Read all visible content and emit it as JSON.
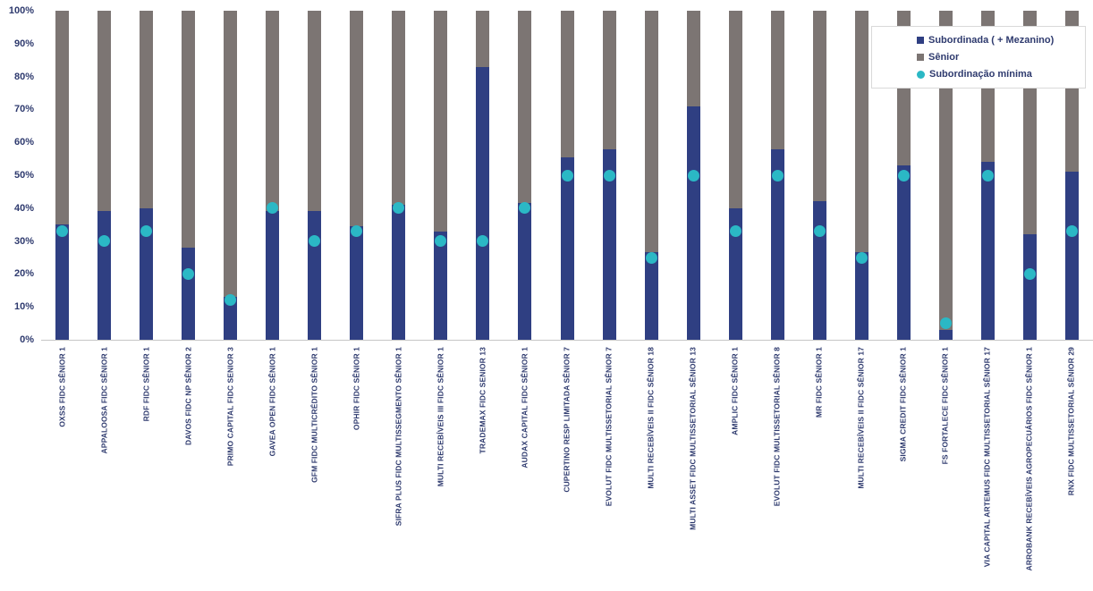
{
  "chart_data": {
    "type": "bar",
    "stacked": true,
    "grid": false,
    "legend_position": "top-right",
    "ylim": [
      0,
      100
    ],
    "yticks": [
      "0%",
      "10%",
      "20%",
      "30%",
      "40%",
      "50%",
      "60%",
      "70%",
      "80%",
      "90%",
      "100%"
    ],
    "categories": [
      "OXSS FIDC SÊNIOR 1",
      "APPALOOSA FIDC SÊNIOR 1",
      "RDF FIDC SÊNIOR 1",
      "DAVOS FIDC NP SÊNIOR 2",
      "PRIMO CAPITAL FIDC SENIOR 3",
      "GAVEA OPEN FIDC SÊNIOR 1",
      "GFM FIDC MULTICRÉDITO SÊNIOR 1",
      "OPHIR FIDC SÊNIOR 1",
      "SIFRA PLUS FIDC MULTISSEGMENTO SÊNIOR 1",
      "MULTI RECEBÍVEIS III FIDC SÊNIOR 1",
      "TRADEMAX FIDC SENIOR 13",
      "AUDAX CAPITAL FIDC SÊNIOR 1",
      "CUPERTINO RESP LIMITADA SÊNIOR 7",
      "EVOLUT FIDC MULTISSETORIAL SÊNIOR 7",
      "MULTI RECEBÍVEIS II FIDC SÊNIOR 18",
      "MULTI ASSET FIDC MULTISSETORIAL SÊNIOR 13",
      "AMPLIC FIDC SÊNIOR 1",
      "EVOLUT FIDC MULTISSETORIAL SÊNIOR 8",
      "MR FIDC SÊNIOR 1",
      "MULTI RECEBÍVEIS II FIDC SÊNIOR 17",
      "SIGMA CREDIT FIDC SÊNIOR 1",
      "FS FORTALECE FIDC SÊNIOR 1",
      "VIA CAPITAL ARTEMUS FIDC MULTISSETORIAL SÊNIOR 17",
      "ARROBANK RECEBÍVEIS AGROPECUÁRIOS FIDC SÊNIOR 1",
      "RNX FIDC MULTISSETORIAL SÊNIOR 29"
    ],
    "series": [
      {
        "name": "Subordinada ( + Mezanino)",
        "type": "bar",
        "color": "#2F3F82",
        "values": [
          35,
          39,
          40,
          28,
          13,
          39,
          39,
          34.5,
          41,
          33,
          83,
          41.5,
          55.5,
          58,
          26.5,
          71,
          40,
          58,
          42,
          26.5,
          53,
          3,
          54,
          32,
          51
        ]
      },
      {
        "name": "Sênior",
        "type": "bar",
        "color": "#7C7573",
        "values": [
          65,
          61,
          60,
          72,
          87,
          61,
          61,
          65.5,
          59,
          67,
          17,
          58.5,
          44.5,
          42,
          73.5,
          29,
          60,
          42,
          58,
          73.5,
          47,
          97,
          46,
          68,
          49
        ]
      },
      {
        "name": "Subordinação mínima",
        "type": "point",
        "color": "#2BB8C5",
        "values": [
          33,
          30,
          33,
          20,
          12,
          40,
          30,
          33,
          40,
          30,
          30,
          40,
          50,
          50,
          25,
          50,
          33,
          50,
          33,
          25,
          50,
          5,
          50,
          20,
          33
        ]
      }
    ],
    "axis_line_color": "#C6C6C6",
    "label_color": "#2E3A6E"
  }
}
